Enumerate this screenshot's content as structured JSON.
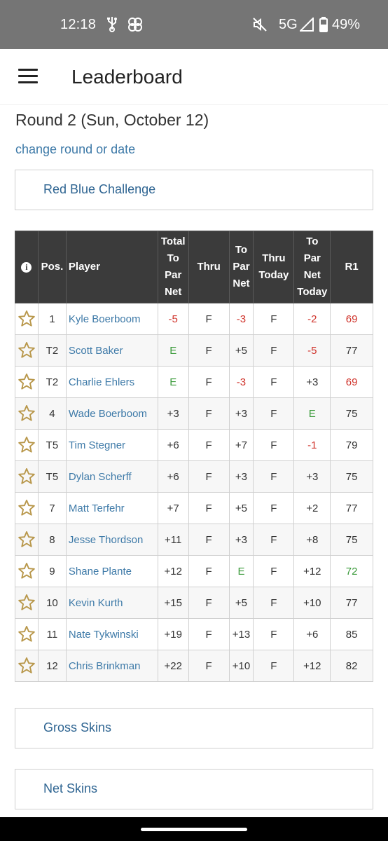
{
  "status_bar": {
    "time": "12:18",
    "network": "5G",
    "battery": "49%"
  },
  "header": {
    "title": "Leaderboard"
  },
  "round_title": "Round 2 (Sun, October 12)",
  "change_link": "change round or date",
  "sections": {
    "top": "Red Blue Challenge",
    "gross_skins": "Gross Skins",
    "net_skins": "Net Skins"
  },
  "table": {
    "headers": {
      "pos": "Pos.",
      "player": "Player",
      "total_to_par_net": [
        "Total",
        "To",
        "Par",
        "Net"
      ],
      "thru": "Thru",
      "to_par_net": [
        "To",
        "Par",
        "Net"
      ],
      "thru_today": [
        "Thru",
        "Today"
      ],
      "to_par_net_today": [
        "To",
        "Par",
        "Net",
        "Today"
      ],
      "r1": "R1"
    },
    "rows": [
      {
        "pos": "1",
        "player": "Kyle Boerboom",
        "total": "-5",
        "thru": "F",
        "to_par_net": "-3",
        "thru_today": "F",
        "to_par_net_today": "-2",
        "r1": "69"
      },
      {
        "pos": "T2",
        "player": "Scott Baker",
        "total": "E",
        "thru": "F",
        "to_par_net": "+5",
        "thru_today": "F",
        "to_par_net_today": "-5",
        "r1": "77"
      },
      {
        "pos": "T2",
        "player": "Charlie Ehlers",
        "total": "E",
        "thru": "F",
        "to_par_net": "-3",
        "thru_today": "F",
        "to_par_net_today": "+3",
        "r1": "69"
      },
      {
        "pos": "4",
        "player": "Wade Boerboom",
        "total": "+3",
        "thru": "F",
        "to_par_net": "+3",
        "thru_today": "F",
        "to_par_net_today": "E",
        "r1": "75"
      },
      {
        "pos": "T5",
        "player": "Tim Stegner",
        "total": "+6",
        "thru": "F",
        "to_par_net": "+7",
        "thru_today": "F",
        "to_par_net_today": "-1",
        "r1": "79"
      },
      {
        "pos": "T5",
        "player": "Dylan Scherff",
        "total": "+6",
        "thru": "F",
        "to_par_net": "+3",
        "thru_today": "F",
        "to_par_net_today": "+3",
        "r1": "75"
      },
      {
        "pos": "7",
        "player": "Matt Terfehr",
        "total": "+7",
        "thru": "F",
        "to_par_net": "+5",
        "thru_today": "F",
        "to_par_net_today": "+2",
        "r1": "77"
      },
      {
        "pos": "8",
        "player": "Jesse Thordson",
        "total": "+11",
        "thru": "F",
        "to_par_net": "+3",
        "thru_today": "F",
        "to_par_net_today": "+8",
        "r1": "75"
      },
      {
        "pos": "9",
        "player": "Shane Plante",
        "total": "+12",
        "thru": "F",
        "to_par_net": "E",
        "thru_today": "F",
        "to_par_net_today": "+12",
        "r1": "72"
      },
      {
        "pos": "10",
        "player": "Kevin Kurth",
        "total": "+15",
        "thru": "F",
        "to_par_net": "+5",
        "thru_today": "F",
        "to_par_net_today": "+10",
        "r1": "77"
      },
      {
        "pos": "11",
        "player": "Nate Tykwinski",
        "total": "+19",
        "thru": "F",
        "to_par_net": "+13",
        "thru_today": "F",
        "to_par_net_today": "+6",
        "r1": "85"
      },
      {
        "pos": "12",
        "player": "Chris Brinkman",
        "total": "+22",
        "thru": "F",
        "to_par_net": "+10",
        "thru_today": "F",
        "to_par_net_today": "+12",
        "r1": "82"
      }
    ]
  },
  "colors": {
    "under_par": "#d0342c",
    "even_par": "#3a9a3a",
    "link": "#3e7aa8",
    "header_bg": "#3b3b3b",
    "star": "#b8974a"
  },
  "icons": {
    "menu": "hamburger-icon",
    "favorite": "star-outline-icon",
    "info": "info-icon"
  }
}
